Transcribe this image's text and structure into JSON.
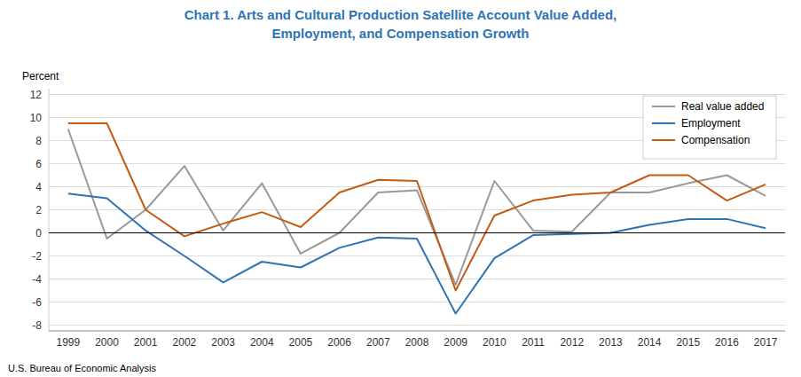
{
  "chart_data": {
    "type": "line",
    "title": "Chart 1. Arts and Cultural Production Satellite Account Value Added,\nEmployment, and Compensation Growth",
    "y_label": "Percent",
    "source": "U.S. Bureau of Economic Analysis",
    "x": [
      1999,
      2000,
      2001,
      2002,
      2003,
      2004,
      2005,
      2006,
      2007,
      2008,
      2009,
      2010,
      2011,
      2012,
      2013,
      2014,
      2015,
      2016,
      2017
    ],
    "series": [
      {
        "name": "Real value added",
        "color": "#999999",
        "values": [
          9.0,
          -0.5,
          2.0,
          5.8,
          0.2,
          4.3,
          -1.8,
          0.0,
          3.5,
          3.7,
          -4.5,
          4.5,
          0.2,
          0.1,
          3.5,
          3.5,
          4.3,
          5.0,
          3.2
        ]
      },
      {
        "name": "Employment",
        "color": "#2E74B5",
        "values": [
          3.4,
          3.0,
          0.2,
          -2.0,
          -4.3,
          -2.5,
          -3.0,
          -1.3,
          -0.4,
          -0.5,
          -7.0,
          -2.2,
          -0.2,
          -0.1,
          0.0,
          0.7,
          1.2,
          1.2,
          0.4
        ]
      },
      {
        "name": "Compensation",
        "color": "#C55A11",
        "values": [
          9.5,
          9.5,
          2.0,
          -0.3,
          0.8,
          1.8,
          0.5,
          3.5,
          4.6,
          4.5,
          -5.0,
          1.5,
          2.8,
          3.3,
          3.5,
          5.0,
          5.0,
          2.8,
          4.2
        ]
      }
    ],
    "xlim": [
      1998.5,
      2017.5
    ],
    "xticks": [
      1999,
      2000,
      2001,
      2002,
      2003,
      2004,
      2005,
      2006,
      2007,
      2008,
      2009,
      2010,
      2011,
      2012,
      2013,
      2014,
      2015,
      2016,
      2017
    ],
    "ylim": [
      -8.5,
      12.5
    ],
    "yticks": [
      -8,
      -6,
      -4,
      -2,
      0,
      2,
      4,
      6,
      8,
      10,
      12
    ],
    "grid": true,
    "legend": "upper right",
    "title_color": "#2E74B5"
  }
}
